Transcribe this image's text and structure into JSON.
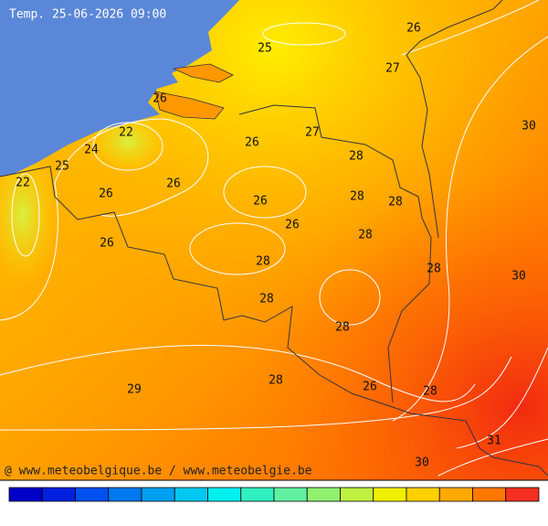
{
  "title": "Temp. 25-06-2026 09:00",
  "credit": "@ www.meteobelgique.be / www.meteobelgie.be",
  "labels": [
    25,
    26,
    27,
    26,
    22,
    26,
    27,
    24,
    25,
    28,
    22,
    26,
    26,
    26,
    28,
    28,
    26,
    28,
    26,
    28,
    28,
    30,
    30,
    28,
    28,
    28,
    29,
    26,
    28,
    31,
    30
  ],
  "colorbar": {
    "colors": [
      "#0000c8",
      "#0020e0",
      "#0050f0",
      "#0078f0",
      "#00a0f0",
      "#00c8f0",
      "#00f0f0",
      "#30f0c0",
      "#60f0a0",
      "#90f070",
      "#c0f040",
      "#f0f000",
      "#ffd000",
      "#ffa800",
      "#ff7800",
      "#f53020"
    ]
  }
}
